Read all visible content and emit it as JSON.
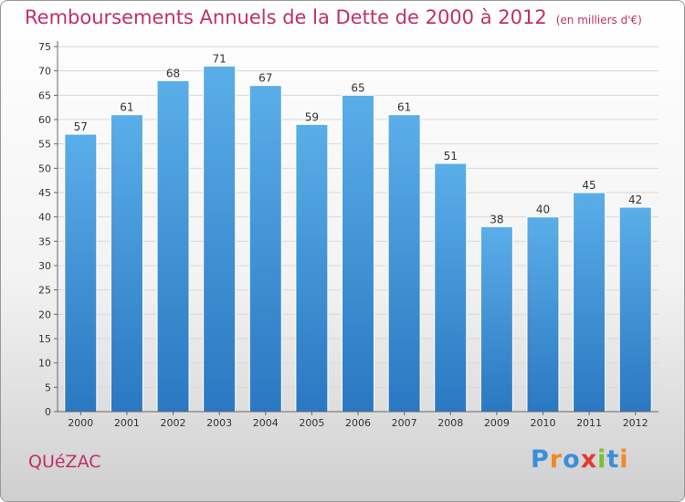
{
  "title": "Remboursements Annuels de la Dette de 2000 à 2012",
  "unit": "(en milliers d'€)",
  "commune": "QUéZAC",
  "logo": "Proxiti",
  "colors": {
    "bar": "#3d8fd6",
    "title": "#c0306a",
    "logo": [
      "#3a8fd9",
      "#f08a24",
      "#3a8fd9",
      "#e23b2e",
      "#7cbf2f",
      "#3a8fd9",
      "#f08a24"
    ]
  },
  "chart_data": {
    "type": "bar",
    "categories": [
      "2000",
      "2001",
      "2002",
      "2003",
      "2004",
      "2005",
      "2006",
      "2007",
      "2008",
      "2009",
      "2010",
      "2011",
      "2012"
    ],
    "values": [
      57,
      61,
      68,
      71,
      67,
      59,
      65,
      61,
      51,
      38,
      40,
      45,
      42
    ],
    "ylim": [
      0,
      75
    ],
    "yticks": [
      0,
      5,
      10,
      15,
      20,
      25,
      30,
      35,
      40,
      45,
      50,
      55,
      60,
      65,
      70,
      75
    ],
    "grid": true,
    "title": "Remboursements Annuels de la Dette de 2000 à 2012",
    "xlabel": "",
    "ylabel": ""
  }
}
